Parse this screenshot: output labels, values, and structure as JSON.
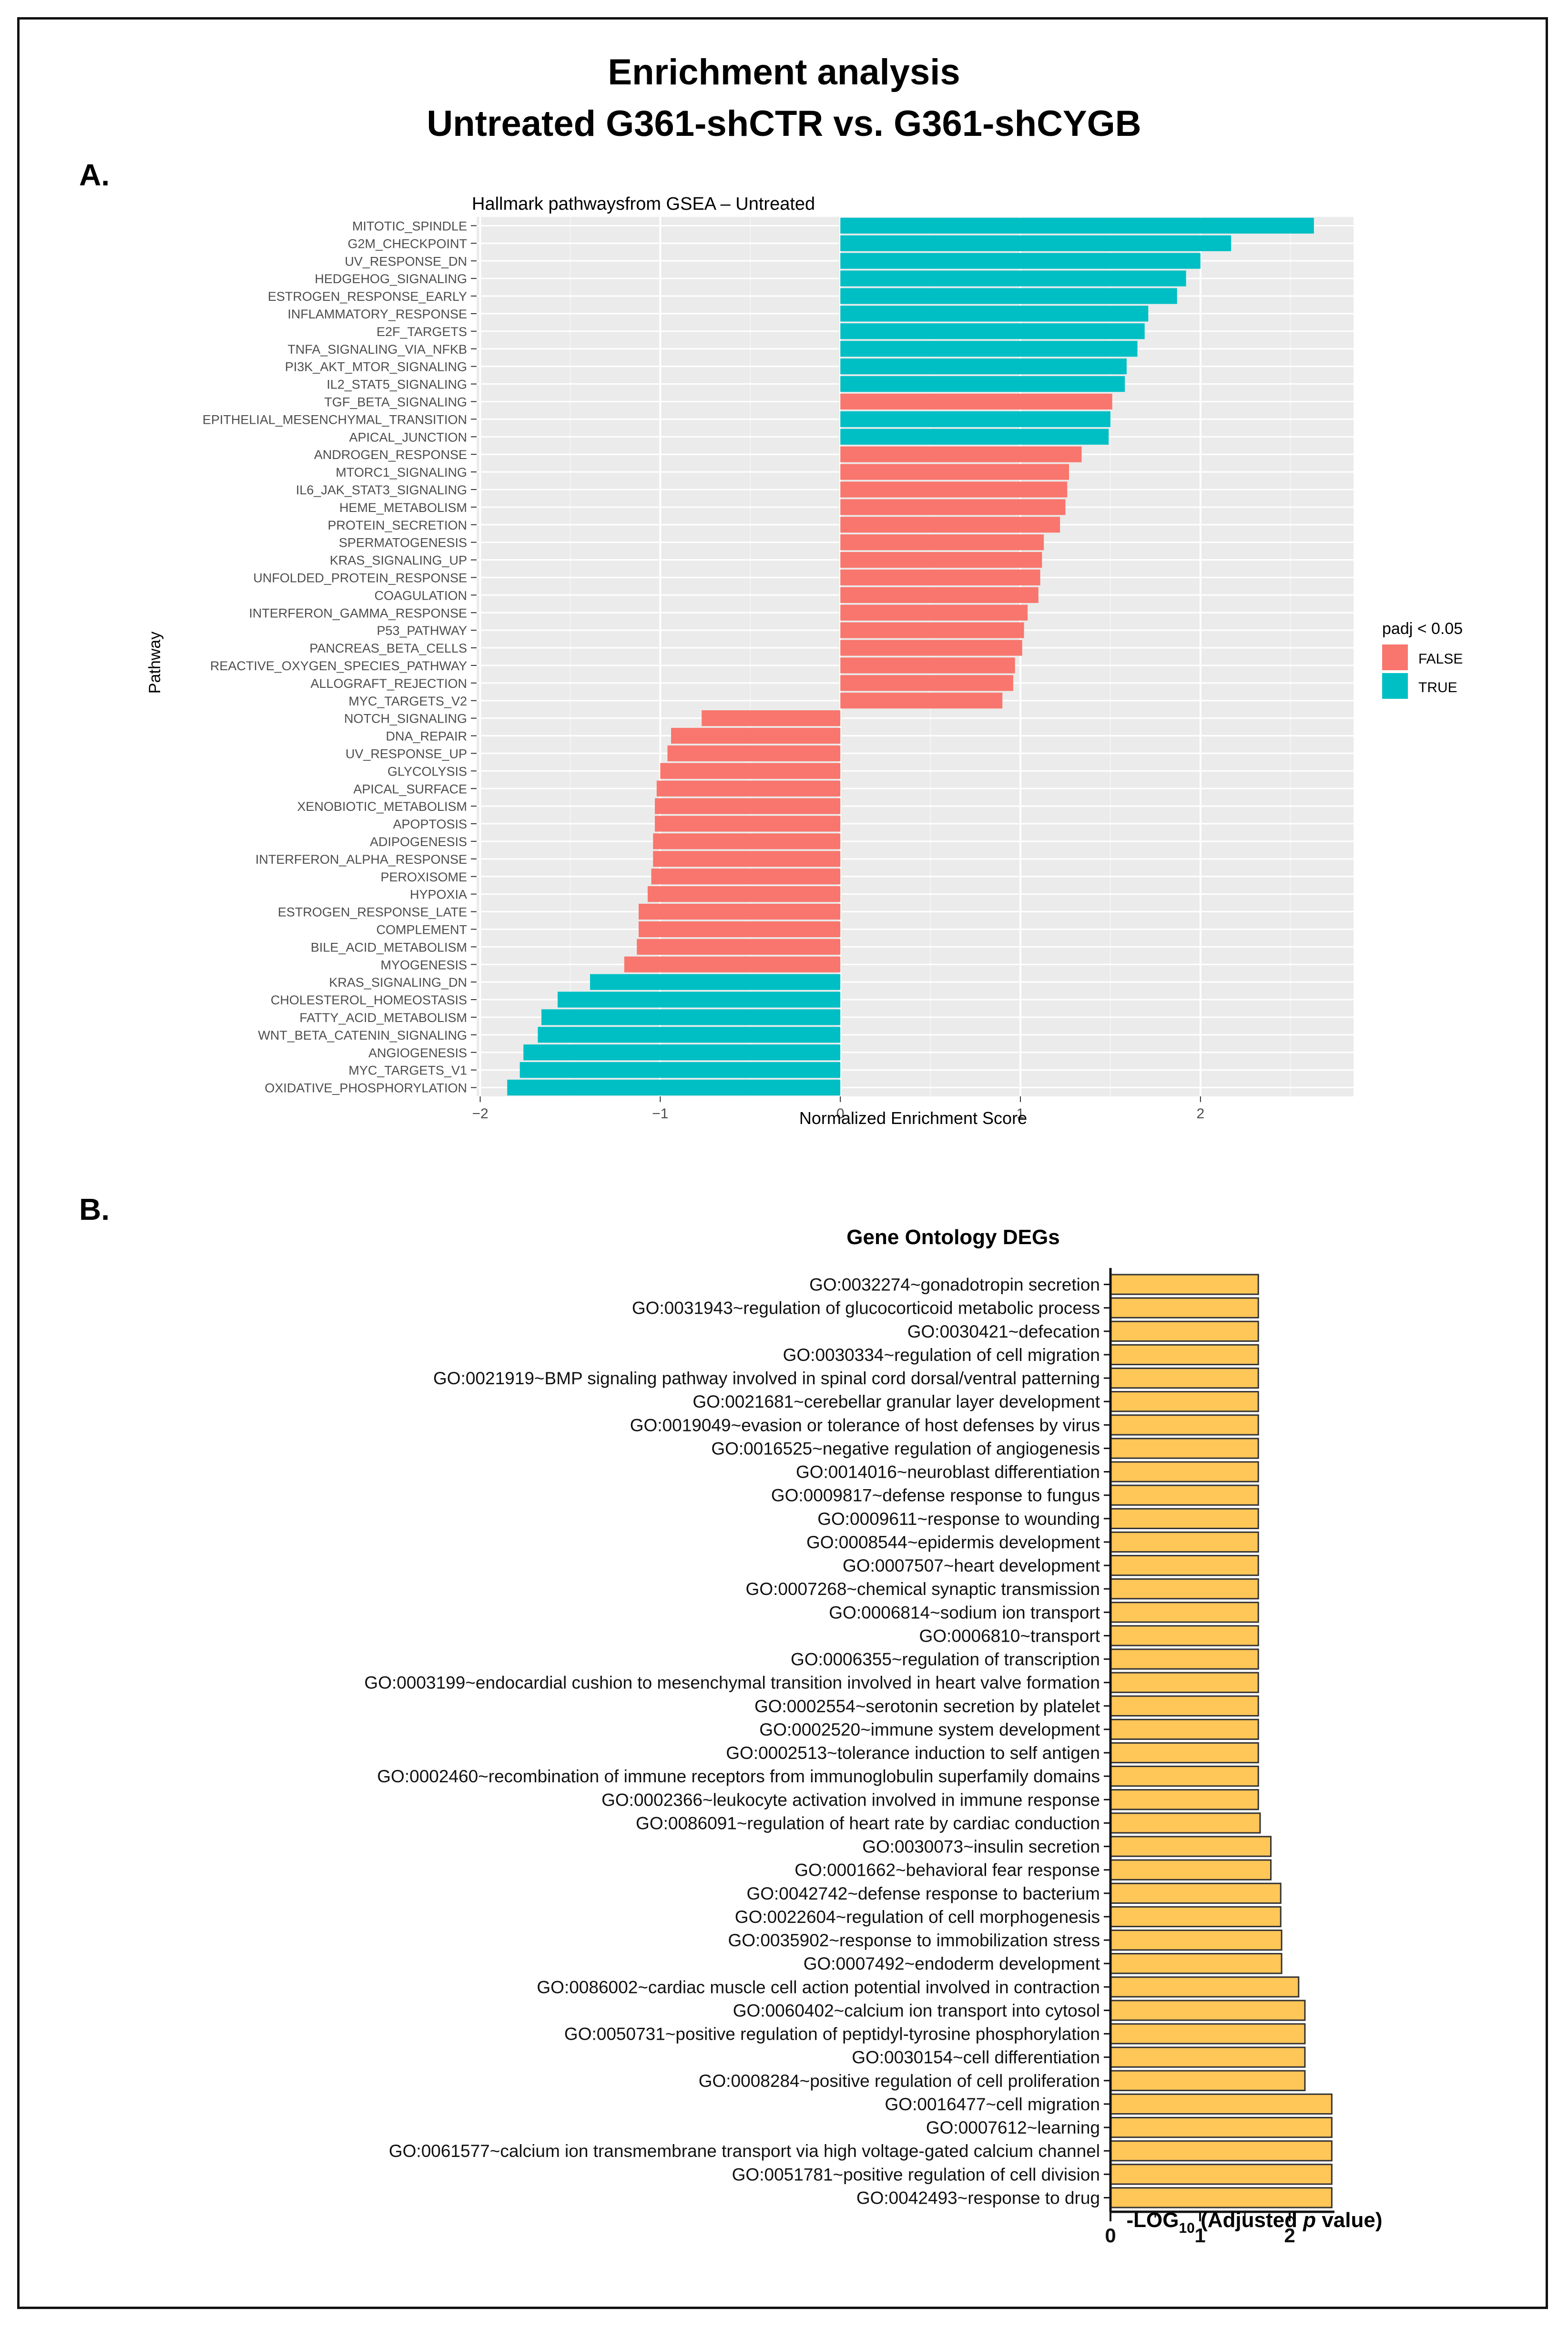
{
  "page": {
    "title_line1": "Enrichment analysis",
    "title_line2": "Untreated G361-shCTR vs. G361-shCYGB",
    "panel_a_label": "A.",
    "panel_b_label": "B."
  },
  "colors": {
    "false_bar": "#F8766D",
    "true_bar": "#00BFC4",
    "go_bar": "#FFC658",
    "panel_bg": "#EBEBEB"
  },
  "chart_data": [
    {
      "type": "bar",
      "orientation": "horizontal",
      "title": "Hallmark pathwaysfrom GSEA – Untreated",
      "xlabel": "Normalized Enrichment Score",
      "ylabel": "Pathway",
      "xlim": [
        -2.02,
        2.85
      ],
      "xticks": [
        -2,
        -1,
        0,
        1,
        2
      ],
      "xtick_labels": [
        "−2",
        "−1",
        "0",
        "1",
        "2"
      ],
      "legend_title": "padj < 0.05",
      "legend_labels": [
        "FALSE",
        "TRUE"
      ],
      "legend_position": "right",
      "grid": true,
      "categories": [
        "MITOTIC_SPINDLE",
        "G2M_CHECKPOINT",
        "UV_RESPONSE_DN",
        "HEDGEHOG_SIGNALING",
        "ESTROGEN_RESPONSE_EARLY",
        "INFLAMMATORY_RESPONSE",
        "E2F_TARGETS",
        "TNFA_SIGNALING_VIA_NFKB",
        "PI3K_AKT_MTOR_SIGNALING",
        "IL2_STAT5_SIGNALING",
        "TGF_BETA_SIGNALING",
        "EPITHELIAL_MESENCHYMAL_TRANSITION",
        "APICAL_JUNCTION",
        "ANDROGEN_RESPONSE",
        "MTORC1_SIGNALING",
        "IL6_JAK_STAT3_SIGNALING",
        "HEME_METABOLISM",
        "PROTEIN_SECRETION",
        "SPERMATOGENESIS",
        "KRAS_SIGNALING_UP",
        "UNFOLDED_PROTEIN_RESPONSE",
        "COAGULATION",
        "INTERFERON_GAMMA_RESPONSE",
        "P53_PATHWAY",
        "PANCREAS_BETA_CELLS",
        "REACTIVE_OXYGEN_SPECIES_PATHWAY",
        "ALLOGRAFT_REJECTION",
        "MYC_TARGETS_V2",
        "NOTCH_SIGNALING",
        "DNA_REPAIR",
        "UV_RESPONSE_UP",
        "GLYCOLYSIS",
        "APICAL_SURFACE",
        "XENOBIOTIC_METABOLISM",
        "APOPTOSIS",
        "ADIPOGENESIS",
        "INTERFERON_ALPHA_RESPONSE",
        "PEROXISOME",
        "HYPOXIA",
        "ESTROGEN_RESPONSE_LATE",
        "COMPLEMENT",
        "BILE_ACID_METABOLISM",
        "MYOGENESIS",
        "KRAS_SIGNALING_DN",
        "CHOLESTEROL_HOMEOSTASIS",
        "FATTY_ACID_METABOLISM",
        "WNT_BETA_CATENIN_SIGNALING",
        "ANGIOGENESIS",
        "MYC_TARGETS_V1",
        "OXIDATIVE_PHOSPHORYLATION"
      ],
      "values": [
        2.63,
        2.17,
        2.0,
        1.92,
        1.87,
        1.71,
        1.69,
        1.65,
        1.59,
        1.58,
        1.51,
        1.5,
        1.49,
        1.34,
        1.27,
        1.26,
        1.25,
        1.22,
        1.13,
        1.12,
        1.11,
        1.1,
        1.04,
        1.02,
        1.01,
        0.97,
        0.96,
        0.9,
        -0.77,
        -0.94,
        -0.96,
        -1.0,
        -1.02,
        -1.03,
        -1.03,
        -1.04,
        -1.04,
        -1.05,
        -1.07,
        -1.12,
        -1.12,
        -1.13,
        -1.2,
        -1.39,
        -1.57,
        -1.66,
        -1.68,
        -1.76,
        -1.78,
        -1.85
      ],
      "significant": [
        true,
        true,
        true,
        true,
        true,
        true,
        true,
        true,
        true,
        true,
        false,
        true,
        true,
        false,
        false,
        false,
        false,
        false,
        false,
        false,
        false,
        false,
        false,
        false,
        false,
        false,
        false,
        false,
        false,
        false,
        false,
        false,
        false,
        false,
        false,
        false,
        false,
        false,
        false,
        false,
        false,
        false,
        false,
        true,
        true,
        true,
        true,
        true,
        true,
        true
      ]
    },
    {
      "type": "bar",
      "orientation": "horizontal",
      "title": "Gene Ontology DEGs",
      "xlabel_prefix": "-LOG",
      "xlabel_sub": "10",
      "xlabel_mid": " (Adjusted ",
      "xlabel_italic": "p",
      "xlabel_suffix": " value)",
      "xlim": [
        0,
        2.5
      ],
      "xticks": [
        0,
        1,
        2
      ],
      "xtick_labels": [
        "0",
        "1",
        "2"
      ],
      "categories": [
        "GO:0032274~gonadotropin secretion",
        "GO:0031943~regulation of glucocorticoid metabolic process",
        "GO:0030421~defecation",
        "GO:0030334~regulation of cell migration",
        "GO:0021919~BMP signaling pathway involved in spinal cord dorsal/ventral patterning",
        "GO:0021681~cerebellar granular layer development",
        "GO:0019049~evasion or tolerance of host defenses by virus",
        "GO:0016525~negative regulation of angiogenesis",
        "GO:0014016~neuroblast differentiation",
        "GO:0009817~defense response to fungus",
        "GO:0009611~response to wounding",
        "GO:0008544~epidermis development",
        "GO:0007507~heart development",
        "GO:0007268~chemical synaptic transmission",
        "GO:0006814~sodium ion transport",
        "GO:0006810~transport",
        "GO:0006355~regulation of transcription",
        "GO:0003199~endocardial cushion to mesenchymal transition involved in heart valve formation",
        "GO:0002554~serotonin secretion by platelet",
        "GO:0002520~immune system development",
        "GO:0002513~tolerance induction to self antigen",
        "GO:0002460~recombination of immune receptors from immunoglobulin superfamily domains",
        "GO:0002366~leukocyte activation involved in immune response",
        "GO:0086091~regulation of heart rate by cardiac conduction",
        "GO:0030073~insulin secretion",
        "GO:0001662~behavioral fear response",
        "GO:0042742~defense response to bacterium",
        "GO:0022604~regulation of cell morphogenesis",
        "GO:0035902~response to immobilization stress",
        "GO:0007492~endoderm development",
        "GO:0086002~cardiac muscle cell action potential involved in contraction",
        "GO:0060402~calcium ion transport into cytosol",
        "GO:0050731~positive regulation of peptidyl-tyrosine phosphorylation",
        "GO:0030154~cell differentiation",
        "GO:0008284~positive regulation of cell proliferation",
        "GO:0016477~cell migration",
        "GO:0007612~learning",
        "GO:0061577~calcium ion transmembrane transport via high voltage-gated calcium channel",
        "GO:0051781~positive regulation of cell division",
        "GO:0042493~response to drug"
      ],
      "values": [
        1.65,
        1.65,
        1.65,
        1.65,
        1.65,
        1.65,
        1.65,
        1.65,
        1.65,
        1.65,
        1.65,
        1.65,
        1.65,
        1.65,
        1.65,
        1.65,
        1.65,
        1.65,
        1.65,
        1.65,
        1.65,
        1.65,
        1.65,
        1.67,
        1.79,
        1.79,
        1.9,
        1.9,
        1.91,
        1.91,
        2.1,
        2.17,
        2.17,
        2.17,
        2.17,
        2.47,
        2.47,
        2.47,
        2.47,
        2.47
      ]
    }
  ]
}
